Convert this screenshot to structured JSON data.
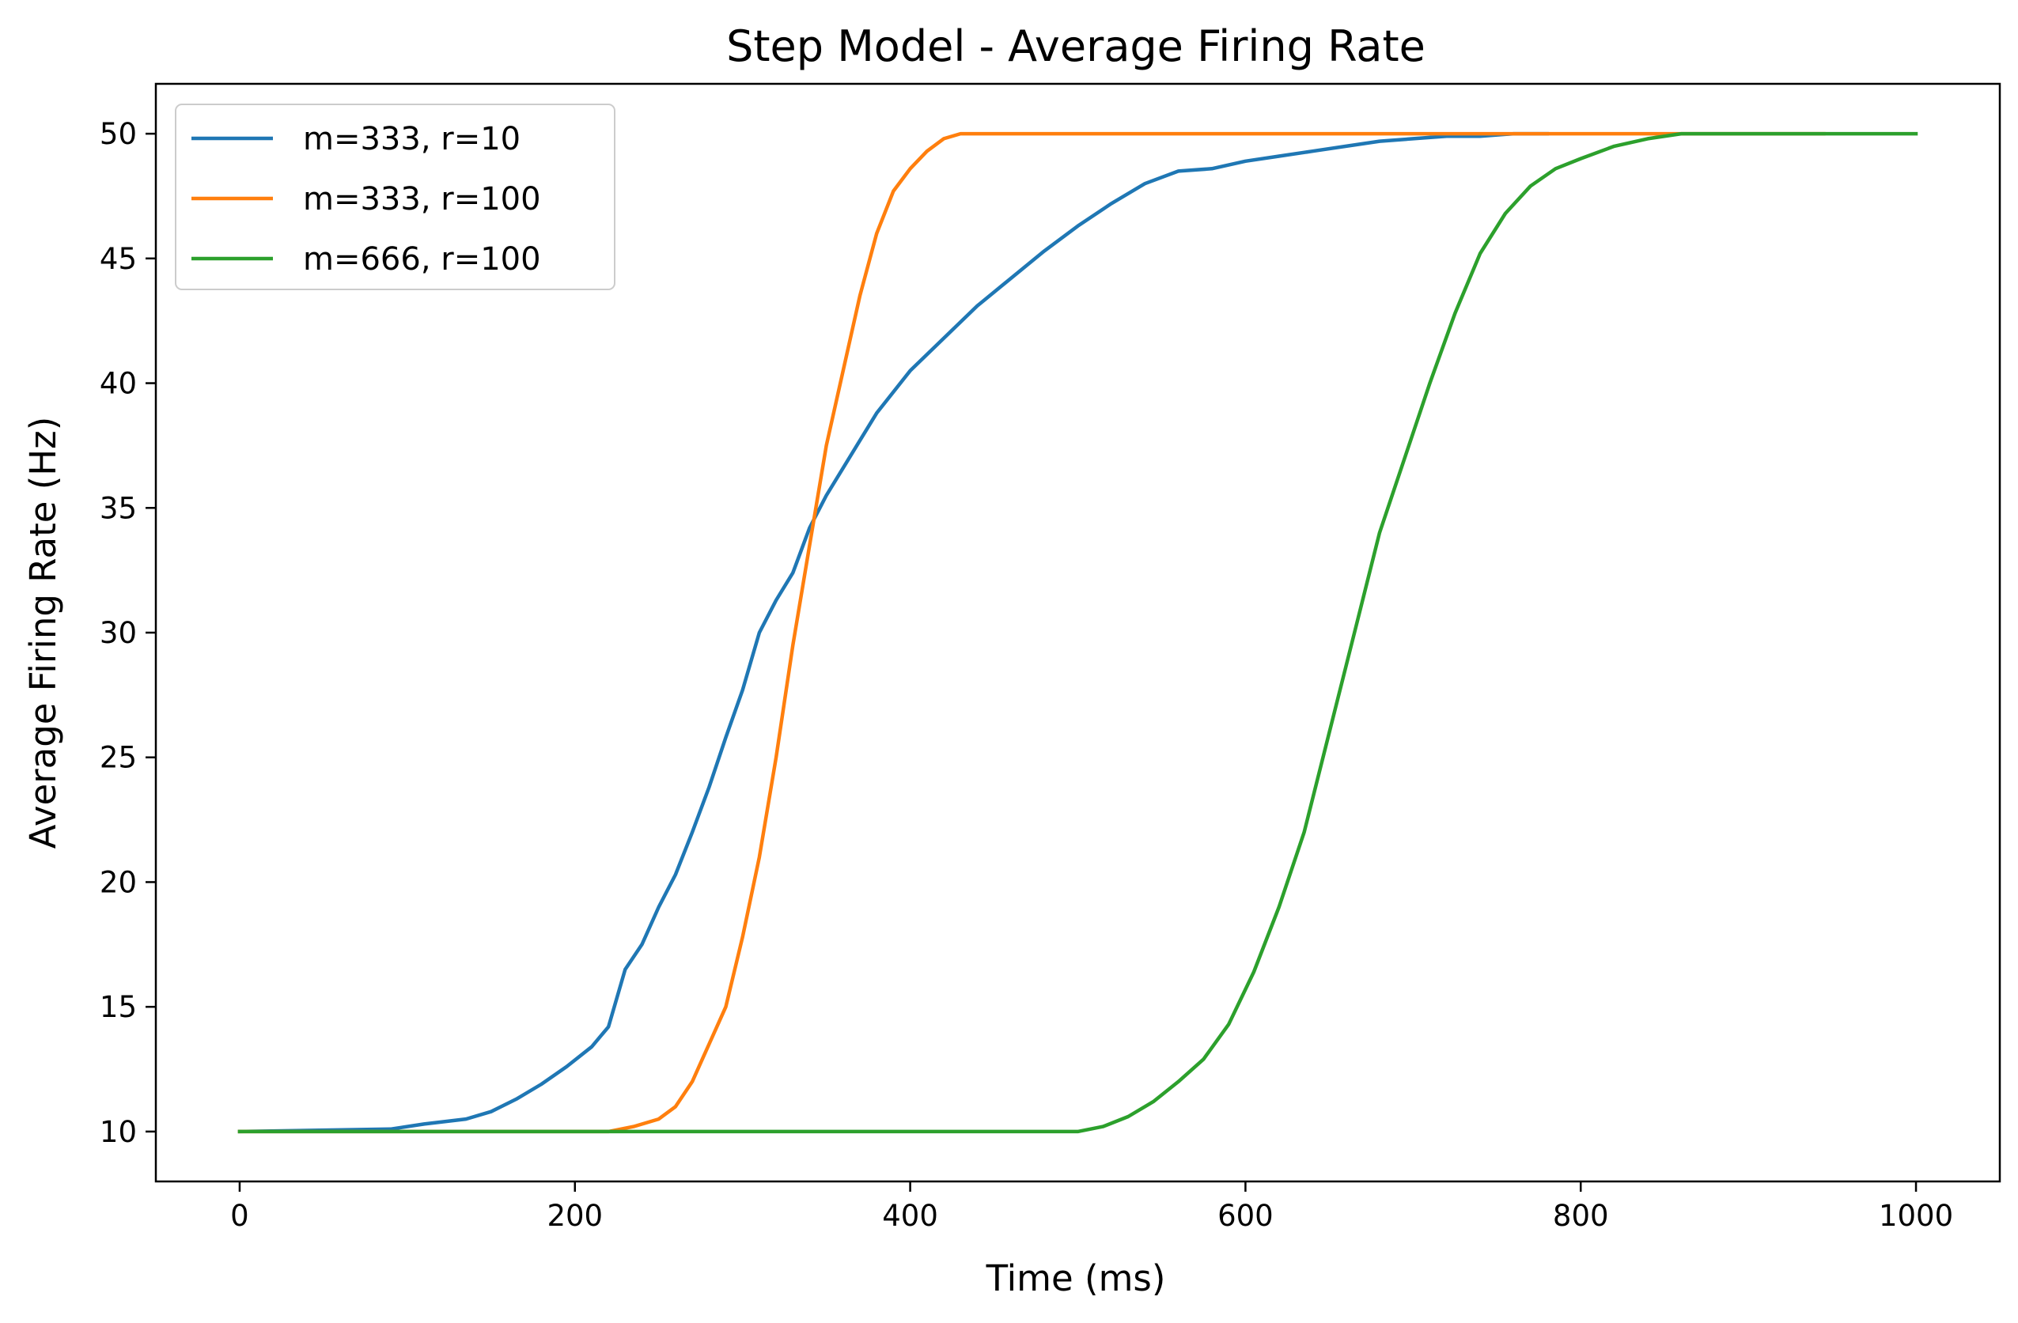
{
  "chart_data": {
    "type": "line",
    "title": "Step Model - Average Firing Rate",
    "xlabel": "Time (ms)",
    "ylabel": "Average Firing Rate (Hz)",
    "xlim": [
      -50,
      1050
    ],
    "ylim": [
      8,
      52
    ],
    "xticks": [
      0,
      200,
      400,
      600,
      800,
      1000
    ],
    "yticks": [
      10,
      15,
      20,
      25,
      30,
      35,
      40,
      45,
      50
    ],
    "grid": false,
    "legend_position": "upper left",
    "series": [
      {
        "name": "m=333, r=10",
        "color": "#1f77b4",
        "x": [
          0,
          90,
          110,
          135,
          150,
          165,
          180,
          195,
          210,
          220,
          230,
          240,
          250,
          260,
          270,
          280,
          290,
          300,
          310,
          320,
          330,
          340,
          350,
          360,
          370,
          380,
          400,
          420,
          440,
          460,
          480,
          500,
          520,
          540,
          560,
          580,
          600,
          620,
          640,
          660,
          680,
          700,
          720,
          740,
          760,
          780
        ],
        "y": [
          10,
          10.1,
          10.3,
          10.5,
          10.8,
          11.3,
          11.9,
          12.6,
          13.4,
          14.2,
          16.5,
          17.5,
          19.0,
          20.3,
          22.0,
          23.8,
          25.8,
          27.7,
          30.0,
          31.3,
          32.4,
          34.2,
          35.5,
          36.6,
          37.7,
          38.8,
          40.5,
          41.8,
          43.1,
          44.2,
          45.3,
          46.3,
          47.2,
          48.0,
          48.5,
          48.6,
          48.9,
          49.1,
          49.3,
          49.5,
          49.7,
          49.8,
          49.9,
          49.9,
          50,
          50
        ]
      },
      {
        "name": "m=333, r=100",
        "color": "#ff7f0e",
        "x": [
          0,
          220,
          235,
          250,
          260,
          270,
          280,
          290,
          300,
          310,
          320,
          330,
          340,
          350,
          360,
          370,
          380,
          390,
          400,
          410,
          420,
          430,
          945
        ],
        "y": [
          10,
          10,
          10.2,
          10.5,
          11.0,
          12.0,
          13.5,
          15.0,
          17.8,
          21.0,
          25.0,
          29.5,
          33.5,
          37.5,
          40.5,
          43.5,
          46.0,
          47.7,
          48.6,
          49.3,
          49.8,
          50,
          50
        ]
      },
      {
        "name": "m=666, r=100",
        "color": "#2ca02c",
        "x": [
          0,
          500,
          515,
          530,
          545,
          560,
          575,
          590,
          605,
          620,
          635,
          650,
          665,
          680,
          695,
          710,
          725,
          740,
          755,
          770,
          785,
          800,
          820,
          840,
          860,
          1000
        ],
        "y": [
          10,
          10,
          10.2,
          10.6,
          11.2,
          12.0,
          12.9,
          14.3,
          16.4,
          19.0,
          22.0,
          26.0,
          30.0,
          34.0,
          37.0,
          40.0,
          42.8,
          45.2,
          46.8,
          47.9,
          48.6,
          49.0,
          49.5,
          49.8,
          50,
          50
        ]
      }
    ]
  }
}
